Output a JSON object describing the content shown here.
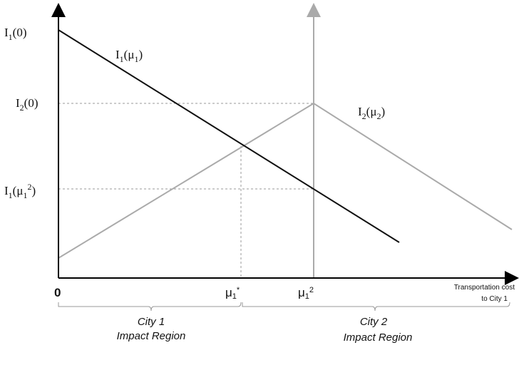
{
  "axis_labels": {
    "i1_0": [
      "I",
      "1",
      "(0)"
    ],
    "i2_0": [
      "I",
      "2",
      "(0)"
    ],
    "i1_mu1_2": [
      "I",
      "1",
      "(μ",
      "1",
      "2",
      ")"
    ],
    "origin": "0",
    "mu1_star": [
      "μ",
      "1",
      "*"
    ],
    "mu1_2": [
      "μ",
      "1",
      "2"
    ],
    "x_axis_title": [
      "Transportation cost",
      "to City 1"
    ]
  },
  "curve_labels": {
    "i1_mu1": [
      "I",
      "1",
      "(μ",
      "1",
      ")"
    ],
    "i2_mu2": [
      "I",
      "2",
      "(μ",
      "2",
      ")"
    ]
  },
  "regions": [
    {
      "name": "City 1",
      "subtitle": "Impact Region"
    },
    {
      "name": "City 2",
      "subtitle": "Impact Region"
    }
  ]
}
